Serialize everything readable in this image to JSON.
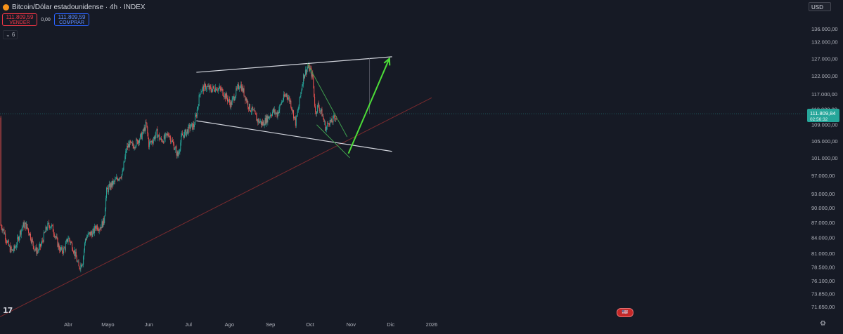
{
  "header": {
    "symbol": "Bitcoin/Dólar estadounidense · 4h · INDEX",
    "sell_price": "111.809,59",
    "sell_label": "VENDER",
    "spread": "0,00",
    "buy_price": "111.809,59",
    "buy_label": "COMPRAR",
    "indicator_count": "⌄ 6",
    "currency": "USD"
  },
  "price_tag": {
    "value": "111.809,84",
    "countdown": "02:56:32"
  },
  "colors": {
    "background": "#161a25",
    "up": "#26a69a",
    "down": "#ef5350",
    "grid": "#1e222d"
  },
  "icons": [
    "bitcoin-icon",
    "tradingview-logo-icon",
    "us-flag-event-icon",
    "settings-icon"
  ],
  "event_marker": "🇺🇸",
  "settings_icon": "⚙",
  "tv_logo": "17",
  "chart_data": {
    "type": "candlestick",
    "timeframe": "4h",
    "y_scale": "log",
    "y_tick_labels": [
      "136.000,00",
      "132.000,00",
      "127.000,00",
      "122.000,00",
      "117.000,00",
      "113.000,00",
      "109.000,00",
      "105.000,00",
      "101.000,00",
      "97.000,00",
      "93.000,00",
      "90.000,00",
      "87.000,00",
      "84.000,00",
      "81.000,00",
      "78.500,00",
      "76.100,00",
      "73.850,00",
      "71.650,00"
    ],
    "y_ticks": [
      136000,
      132000,
      127000,
      122000,
      117000,
      113000,
      109000,
      105000,
      101000,
      97000,
      93000,
      90000,
      87000,
      84000,
      81000,
      78500,
      76100,
      73850,
      71650
    ],
    "x_tick_labels": [
      "Abr",
      "Mayo",
      "Jun",
      "Jul",
      "Ago",
      "Sep",
      "Oct",
      "Nov",
      "Dic",
      "2026"
    ],
    "x_ticks_days": [
      0,
      30,
      61,
      91,
      122,
      153,
      183,
      214,
      244,
      275
    ],
    "x_start": "2025-03-25",
    "x_end": "2026-01-13",
    "close_series": [
      [
        0,
        84000
      ],
      [
        3,
        82500
      ],
      [
        6,
        80200
      ],
      [
        8,
        78400
      ],
      [
        11,
        79500
      ],
      [
        13,
        83800
      ],
      [
        16,
        84700
      ],
      [
        19,
        85000
      ],
      [
        21,
        86300
      ],
      [
        24,
        86000
      ],
      [
        27,
        87300
      ],
      [
        29,
        93500
      ],
      [
        32,
        94700
      ],
      [
        35,
        95500
      ],
      [
        38,
        96600
      ],
      [
        41,
        97300
      ],
      [
        44,
        103000
      ],
      [
        46,
        104200
      ],
      [
        49,
        103800
      ],
      [
        52,
        104800
      ],
      [
        56,
        106500
      ],
      [
        59,
        109200
      ],
      [
        61,
        104200
      ],
      [
        64,
        105200
      ],
      [
        67,
        107000
      ],
      [
        70,
        105100
      ],
      [
        73,
        105600
      ],
      [
        76,
        106800
      ],
      [
        79,
        104500
      ],
      [
        83,
        101500
      ],
      [
        86,
        106200
      ],
      [
        89,
        107000
      ],
      [
        92,
        108400
      ],
      [
        95,
        108700
      ],
      [
        97,
        111800
      ],
      [
        100,
        117900
      ],
      [
        104,
        119000
      ],
      [
        108,
        118200
      ],
      [
        112,
        118800
      ],
      [
        116,
        118000
      ],
      [
        120,
        116000
      ],
      [
        123,
        114200
      ],
      [
        127,
        117500
      ],
      [
        130,
        119800
      ],
      [
        133,
        117200
      ],
      [
        137,
        113400
      ],
      [
        140,
        112300
      ],
      [
        143,
        110200
      ],
      [
        147,
        109200
      ],
      [
        151,
        110800
      ],
      [
        155,
        112500
      ],
      [
        158,
        111700
      ],
      [
        162,
        115300
      ],
      [
        165,
        117000
      ],
      [
        168,
        115000
      ],
      [
        172,
        109500
      ],
      [
        174,
        112800
      ],
      [
        176,
        117500
      ],
      [
        178,
        121800
      ],
      [
        181,
        124500
      ],
      [
        183,
        123800
      ],
      [
        185,
        121500
      ],
      [
        187,
        112000
      ],
      [
        189,
        114000
      ],
      [
        192,
        111800
      ],
      [
        195,
        107800
      ],
      [
        197,
        110000
      ],
      [
        199,
        109500
      ],
      [
        202,
        111200
      ],
      [
        203,
        110800
      ]
    ],
    "annotations": {
      "channel_upper": [
        [
          97,
          123000
        ],
        [
          245,
          127500
        ]
      ],
      "channel_lower": [
        [
          97,
          110000
        ],
        [
          245,
          102500
        ]
      ],
      "long_trendline": [
        [
          0,
          70000
        ],
        [
          275,
          116000
        ]
      ],
      "wedge_upper": [
        [
          181,
          125500
        ],
        [
          211,
          106000
        ]
      ],
      "wedge_lower": [
        [
          188,
          109000
        ],
        [
          213,
          101000
        ]
      ],
      "projection_arrow": [
        [
          212,
          102000
        ],
        [
          243,
          127000
        ]
      ],
      "vertical_marker_day": 228
    },
    "last_price": 111809.84,
    "title": "Bitcoin/Dólar estadounidense · 4h · INDEX"
  }
}
